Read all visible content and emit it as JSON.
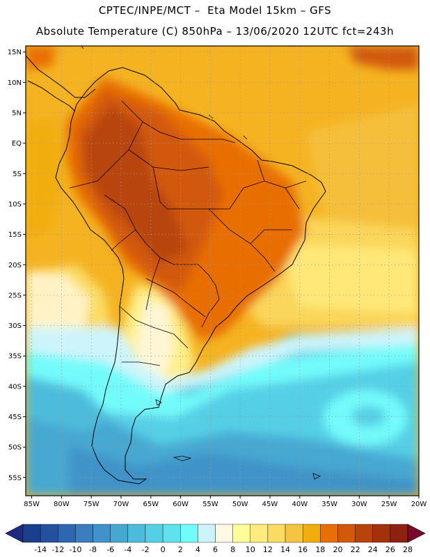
{
  "header": {
    "line1": "CPTEC/INPE/MCT –  Eta Model 15km – GFS",
    "line2": "Absolute Temperature (C) 850hPa – 13/06/2020 12UTC fct=243h"
  },
  "map": {
    "lon_range": [
      -86,
      -20
    ],
    "lat_range": [
      -58,
      16
    ],
    "lat_ticks": [
      {
        "value": 15,
        "label": "15N"
      },
      {
        "value": 10,
        "label": "10N"
      },
      {
        "value": 5,
        "label": "5N"
      },
      {
        "value": 0,
        "label": "EQ"
      },
      {
        "value": -5,
        "label": "5S"
      },
      {
        "value": -10,
        "label": "10S"
      },
      {
        "value": -15,
        "label": "15S"
      },
      {
        "value": -20,
        "label": "20S"
      },
      {
        "value": -25,
        "label": "25S"
      },
      {
        "value": -30,
        "label": "30S"
      },
      {
        "value": -35,
        "label": "35S"
      },
      {
        "value": -40,
        "label": "40S"
      },
      {
        "value": -45,
        "label": "45S"
      },
      {
        "value": -50,
        "label": "50S"
      },
      {
        "value": -55,
        "label": "55S"
      }
    ],
    "lon_ticks": [
      {
        "value": -85,
        "label": "85W"
      },
      {
        "value": -80,
        "label": "80W"
      },
      {
        "value": -75,
        "label": "75W"
      },
      {
        "value": -70,
        "label": "70W"
      },
      {
        "value": -65,
        "label": "65W"
      },
      {
        "value": -60,
        "label": "60W"
      },
      {
        "value": -55,
        "label": "55W"
      },
      {
        "value": -50,
        "label": "50W"
      },
      {
        "value": -45,
        "label": "45W"
      },
      {
        "value": -40,
        "label": "40W"
      },
      {
        "value": -35,
        "label": "35W"
      },
      {
        "value": -30,
        "label": "30W"
      },
      {
        "value": -25,
        "label": "25W"
      },
      {
        "value": -20,
        "label": "20W"
      }
    ]
  },
  "colorbar": {
    "labels": [
      "-14",
      "-12",
      "-10",
      "-8",
      "-6",
      "-4",
      "-2",
      "0",
      "2",
      "4",
      "6",
      "8",
      "10",
      "12",
      "14",
      "16",
      "18",
      "20",
      "22",
      "24",
      "26",
      "28"
    ],
    "colors": [
      "#1b3f8c",
      "#24519f",
      "#2e66b0",
      "#3b7dbf",
      "#3f93c8",
      "#46a8d2",
      "#4dbcdc",
      "#55cfe6",
      "#5fe2ee",
      "#73fbfb",
      "#cdf4fb",
      "#fff8e3",
      "#ffff9a",
      "#ffec7e",
      "#fbdb62",
      "#f5c440",
      "#f1ad0c",
      "#e86e06",
      "#d2580a",
      "#b8440a",
      "#a3310a",
      "#8e210f"
    ],
    "below_color": "#1d2c82",
    "above_color": "#7a0a2d"
  }
}
